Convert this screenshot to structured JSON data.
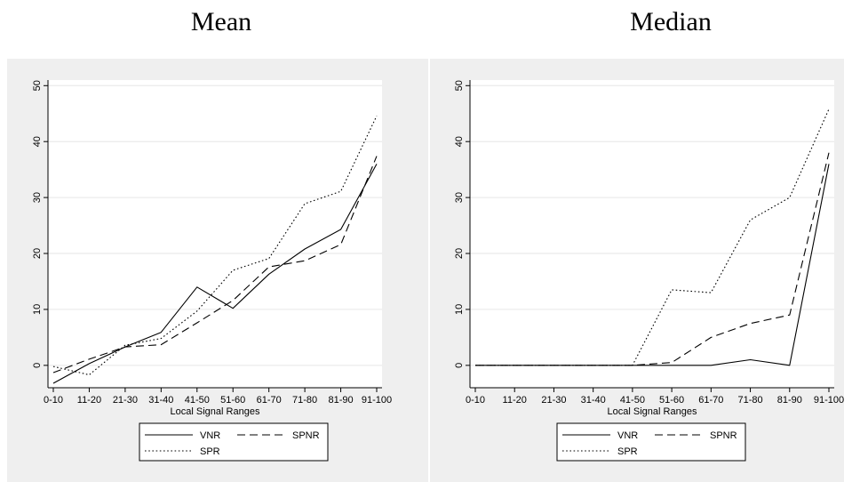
{
  "titles": {
    "left": "Mean",
    "right": "Median"
  },
  "chart_data": [
    {
      "type": "line",
      "title": "Mean",
      "xlabel": "Local Signal Ranges",
      "ylabel": "",
      "categories": [
        "0-10",
        "11-20",
        "21-30",
        "31-40",
        "41-50",
        "51-60",
        "61-70",
        "71-80",
        "81-90",
        "91-100"
      ],
      "yticks": [
        "0",
        "10",
        "20",
        "30",
        "40",
        "50"
      ],
      "ylim": [
        -4,
        51
      ],
      "grid": true,
      "legend_position": "bottom",
      "series": [
        {
          "name": "VNR",
          "style": "solid",
          "values": [
            -3.2,
            0.3,
            3.3,
            5.9,
            14.0,
            10.2,
            16.3,
            20.8,
            24.3,
            36.0
          ]
        },
        {
          "name": "SPNR",
          "style": "dashed",
          "values": [
            -1.3,
            1.1,
            3.3,
            3.7,
            7.6,
            11.6,
            17.6,
            18.7,
            21.6,
            37.4
          ]
        },
        {
          "name": "SPR",
          "style": "dotted",
          "values": [
            -0.2,
            -1.7,
            3.6,
            4.8,
            9.7,
            17.0,
            19.1,
            28.9,
            31.1,
            44.6
          ]
        }
      ]
    },
    {
      "type": "line",
      "title": "Median",
      "xlabel": "Local Signal Ranges",
      "ylabel": "",
      "categories": [
        "0-10",
        "11-20",
        "21-30",
        "31-40",
        "41-50",
        "51-60",
        "61-70",
        "71-80",
        "81-90",
        "91-100"
      ],
      "yticks": [
        "0",
        "10",
        "20",
        "30",
        "40",
        "50"
      ],
      "ylim": [
        -4,
        51
      ],
      "grid": true,
      "legend_position": "bottom",
      "series": [
        {
          "name": "VNR",
          "style": "solid",
          "values": [
            0,
            0,
            0,
            0,
            0,
            0,
            0,
            1.0,
            0,
            36.0
          ]
        },
        {
          "name": "SPNR",
          "style": "dashed",
          "values": [
            0,
            0,
            0,
            0,
            0,
            0.5,
            5.0,
            7.5,
            9.0,
            38.0
          ]
        },
        {
          "name": "SPR",
          "style": "dotted",
          "values": [
            0,
            0,
            0,
            0,
            0,
            13.5,
            13.0,
            26.0,
            30.0,
            45.8
          ]
        }
      ]
    }
  ],
  "colors": {
    "panel_bg": "#efefef",
    "plot_bg": "#ffffff",
    "grid": "#e6e6e6",
    "ink": "#000000"
  }
}
